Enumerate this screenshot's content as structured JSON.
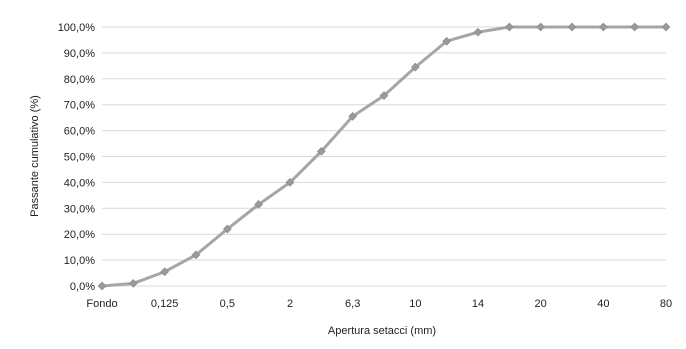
{
  "chart_data": {
    "type": "line",
    "title": "",
    "xlabel": "Apertura setacci (mm)",
    "ylabel": "Passante cumulativo (%)",
    "categories": [
      "Fondo",
      "",
      "0,125",
      "",
      "0,5",
      "",
      "2",
      "",
      "6,3",
      "",
      "10",
      "",
      "14",
      "",
      "20",
      "",
      "40",
      "",
      "80"
    ],
    "series": [
      {
        "values": [
          0.0,
          1.0,
          5.5,
          12.0,
          22.0,
          31.5,
          40.0,
          52.0,
          65.5,
          73.5,
          84.5,
          94.5,
          98.0,
          100.0,
          100.0,
          100.0,
          100.0,
          100.0,
          100.0
        ]
      }
    ],
    "y_ticks": [
      "0,0%",
      "10,0%",
      "20,0%",
      "30,0%",
      "40,0%",
      "50,0%",
      "60,0%",
      "70,0%",
      "80,0%",
      "90,0%",
      "100,0%"
    ],
    "ylim": [
      0,
      100
    ],
    "grid": true,
    "legend": "none",
    "line_color": "#a6a6a6",
    "marker_color": "#9a9a9a",
    "grid_color": "#d9d9d9"
  }
}
